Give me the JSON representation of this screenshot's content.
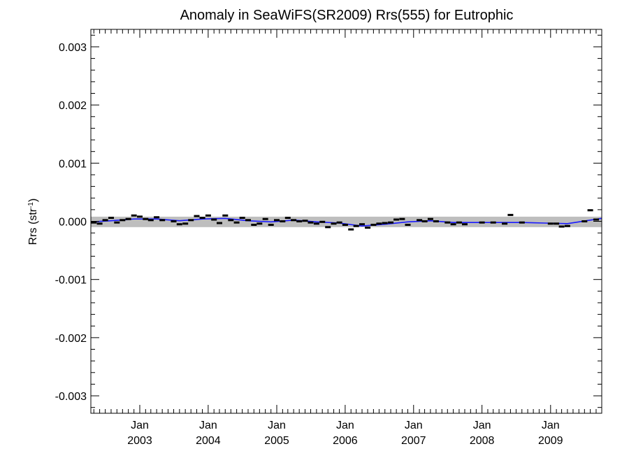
{
  "chart_data": {
    "type": "scatter",
    "title": "Anomaly in SeaWiFS(SR2009) Rrs(555) for Eutrophic",
    "ylabel": "Rrs (str",
    "ylabel_sup": "-1",
    "ylabel_close": ")",
    "xlabel": "",
    "xlim": [
      "2002-04-15",
      "2009-10-01"
    ],
    "ylim": [
      -0.0033,
      0.0033
    ],
    "yticks": [
      {
        "value": 0.003,
        "label": "0.003"
      },
      {
        "value": 0.002,
        "label": "0.002"
      },
      {
        "value": 0.001,
        "label": "0.001"
      },
      {
        "value": 0.0,
        "label": "0.000"
      },
      {
        "value": -0.001,
        "label": "-0.001"
      },
      {
        "value": -0.002,
        "label": "-0.002"
      },
      {
        "value": -0.003,
        "label": "-0.003"
      }
    ],
    "xticks": [
      {
        "date": "2003-01-01",
        "month": "Jan",
        "year": "2003"
      },
      {
        "date": "2004-01-01",
        "month": "Jan",
        "year": "2004"
      },
      {
        "date": "2005-01-01",
        "month": "Jan",
        "year": "2005"
      },
      {
        "date": "2006-01-01",
        "month": "Jan",
        "year": "2006"
      },
      {
        "date": "2007-01-01",
        "month": "Jan",
        "year": "2007"
      },
      {
        "date": "2008-01-01",
        "month": "Jan",
        "year": "2008"
      },
      {
        "date": "2009-01-01",
        "month": "Jan",
        "year": "2009"
      }
    ],
    "band": {
      "upper": 8e-05,
      "lower": -0.0001,
      "color": "#bebebe"
    },
    "monthly_anomalies": [
      {
        "date": "2002-05-01",
        "value": -2e-05
      },
      {
        "date": "2002-06-01",
        "value": -4e-05
      },
      {
        "date": "2002-07-01",
        "value": 2e-05
      },
      {
        "date": "2002-08-01",
        "value": 6e-05
      },
      {
        "date": "2002-09-01",
        "value": -2e-05
      },
      {
        "date": "2002-10-01",
        "value": 2e-05
      },
      {
        "date": "2002-11-01",
        "value": 4e-05
      },
      {
        "date": "2002-12-01",
        "value": 0.0001
      },
      {
        "date": "2003-01-01",
        "value": 8e-05
      },
      {
        "date": "2003-02-01",
        "value": 4e-05
      },
      {
        "date": "2003-03-01",
        "value": 2e-05
      },
      {
        "date": "2003-04-01",
        "value": 7e-05
      },
      {
        "date": "2003-05-01",
        "value": 2e-05
      },
      {
        "date": "2003-07-01",
        "value": 0.0
      },
      {
        "date": "2003-08-01",
        "value": -5e-05
      },
      {
        "date": "2003-09-01",
        "value": -4e-05
      },
      {
        "date": "2003-10-01",
        "value": 2e-05
      },
      {
        "date": "2003-11-01",
        "value": 9e-05
      },
      {
        "date": "2003-12-01",
        "value": 6e-05
      },
      {
        "date": "2004-01-01",
        "value": 0.0001
      },
      {
        "date": "2004-02-01",
        "value": 3e-05
      },
      {
        "date": "2004-03-01",
        "value": -3e-05
      },
      {
        "date": "2004-04-01",
        "value": 0.0001
      },
      {
        "date": "2004-05-01",
        "value": 2e-05
      },
      {
        "date": "2004-06-01",
        "value": -2e-05
      },
      {
        "date": "2004-07-01",
        "value": 6e-05
      },
      {
        "date": "2004-08-01",
        "value": 2e-05
      },
      {
        "date": "2004-09-01",
        "value": -6e-05
      },
      {
        "date": "2004-10-01",
        "value": -4e-05
      },
      {
        "date": "2004-11-01",
        "value": 4e-05
      },
      {
        "date": "2004-12-01",
        "value": -6e-05
      },
      {
        "date": "2005-01-01",
        "value": 2e-05
      },
      {
        "date": "2005-02-01",
        "value": 0.0
      },
      {
        "date": "2005-03-01",
        "value": 6e-05
      },
      {
        "date": "2005-04-01",
        "value": 2e-05
      },
      {
        "date": "2005-05-01",
        "value": 0.0
      },
      {
        "date": "2005-06-01",
        "value": 1e-05
      },
      {
        "date": "2005-07-01",
        "value": -2e-05
      },
      {
        "date": "2005-08-01",
        "value": -4e-05
      },
      {
        "date": "2005-09-01",
        "value": -1e-05
      },
      {
        "date": "2005-10-01",
        "value": -0.0001
      },
      {
        "date": "2005-11-01",
        "value": -4e-05
      },
      {
        "date": "2005-12-01",
        "value": -2e-05
      },
      {
        "date": "2006-01-01",
        "value": -6e-05
      },
      {
        "date": "2006-02-01",
        "value": -0.00014
      },
      {
        "date": "2006-03-01",
        "value": -8e-05
      },
      {
        "date": "2006-04-01",
        "value": -5e-05
      },
      {
        "date": "2006-05-01",
        "value": -0.00011
      },
      {
        "date": "2006-06-01",
        "value": -6e-05
      },
      {
        "date": "2006-07-01",
        "value": -4e-05
      },
      {
        "date": "2006-08-01",
        "value": -3e-05
      },
      {
        "date": "2006-09-01",
        "value": -2e-05
      },
      {
        "date": "2006-10-01",
        "value": 3e-05
      },
      {
        "date": "2006-11-01",
        "value": 4e-05
      },
      {
        "date": "2006-12-01",
        "value": -6e-05
      },
      {
        "date": "2007-02-01",
        "value": 2e-05
      },
      {
        "date": "2007-03-01",
        "value": 0.0
      },
      {
        "date": "2007-04-01",
        "value": 4e-05
      },
      {
        "date": "2007-05-01",
        "value": 0.0
      },
      {
        "date": "2007-07-01",
        "value": -2e-05
      },
      {
        "date": "2007-08-01",
        "value": -5e-05
      },
      {
        "date": "2007-09-01",
        "value": -2e-05
      },
      {
        "date": "2007-10-01",
        "value": -5e-05
      },
      {
        "date": "2008-01-01",
        "value": -2e-05
      },
      {
        "date": "2008-03-01",
        "value": -2e-05
      },
      {
        "date": "2008-05-01",
        "value": -4e-05
      },
      {
        "date": "2008-06-01",
        "value": 0.00011
      },
      {
        "date": "2008-08-01",
        "value": -2e-05
      },
      {
        "date": "2009-01-01",
        "value": -4e-05
      },
      {
        "date": "2009-02-01",
        "value": -4e-05
      },
      {
        "date": "2009-03-01",
        "value": -9e-05
      },
      {
        "date": "2009-04-01",
        "value": -8e-05
      },
      {
        "date": "2009-07-01",
        "value": 0.0
      },
      {
        "date": "2009-08-01",
        "value": 0.00019
      },
      {
        "date": "2009-09-01",
        "value": 3e-05
      }
    ],
    "trend": {
      "color": "#1a1aff",
      "points": [
        {
          "date": "2002-04-15",
          "value": -1e-05
        },
        {
          "date": "2002-08-01",
          "value": 1e-05
        },
        {
          "date": "2002-12-01",
          "value": 4e-05
        },
        {
          "date": "2003-04-01",
          "value": 4e-05
        },
        {
          "date": "2003-08-01",
          "value": 1e-05
        },
        {
          "date": "2003-12-01",
          "value": 4e-05
        },
        {
          "date": "2004-04-01",
          "value": 5e-05
        },
        {
          "date": "2004-08-01",
          "value": 1e-05
        },
        {
          "date": "2004-12-01",
          "value": -1e-05
        },
        {
          "date": "2005-04-01",
          "value": 2e-05
        },
        {
          "date": "2005-08-01",
          "value": -1e-05
        },
        {
          "date": "2005-12-01",
          "value": -3e-05
        },
        {
          "date": "2006-04-01",
          "value": -8e-05
        },
        {
          "date": "2006-08-01",
          "value": -5e-05
        },
        {
          "date": "2006-12-01",
          "value": -1e-05
        },
        {
          "date": "2007-04-01",
          "value": 1e-05
        },
        {
          "date": "2007-08-01",
          "value": -2e-05
        },
        {
          "date": "2007-12-01",
          "value": -2e-05
        },
        {
          "date": "2008-04-01",
          "value": -2e-05
        },
        {
          "date": "2008-08-01",
          "value": -2e-05
        },
        {
          "date": "2008-12-01",
          "value": -3e-05
        },
        {
          "date": "2009-04-01",
          "value": -4e-05
        },
        {
          "date": "2009-08-01",
          "value": 2e-05
        },
        {
          "date": "2009-10-01",
          "value": 5e-05
        }
      ]
    },
    "grid": false,
    "legend": "none"
  }
}
